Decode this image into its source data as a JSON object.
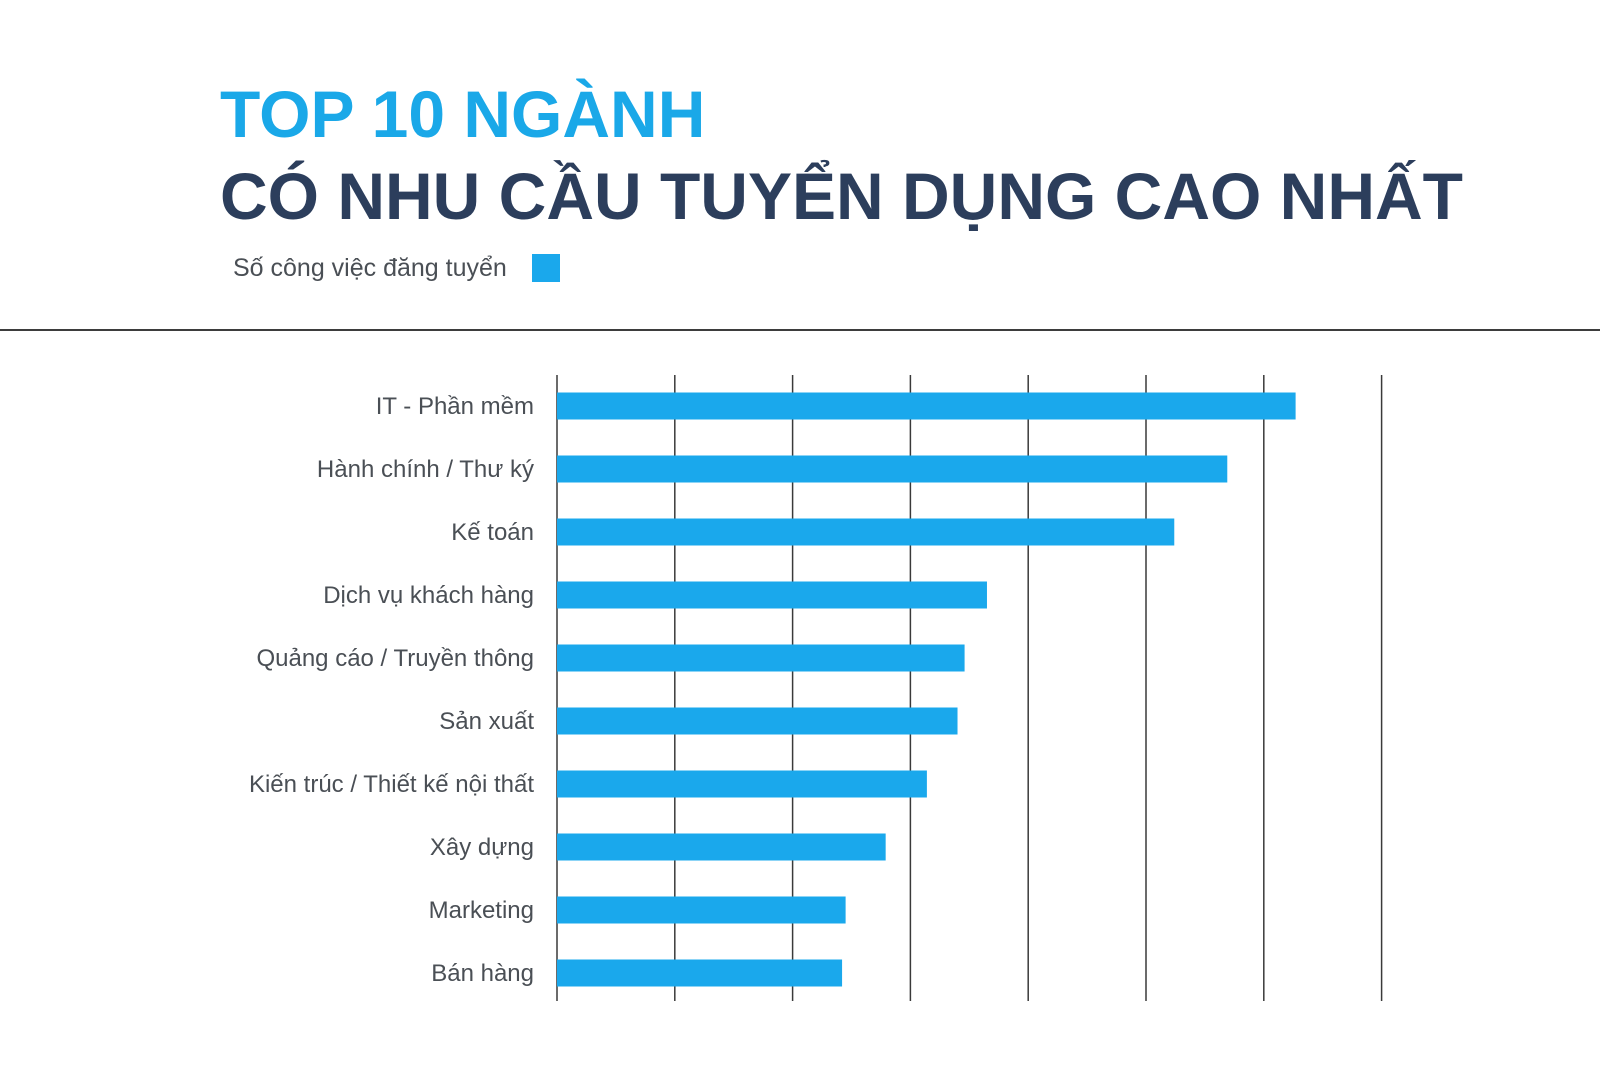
{
  "header": {
    "title_line1": "TOP 10 NGÀNH",
    "title_line2": "CÓ NHU CẦU TUYỂN DỤNG CAO NHẤT"
  },
  "legend": {
    "label": "Số công việc đăng tuyển"
  },
  "colors": {
    "title_accent": "#1aa8e8",
    "title_dark": "#2c3e5c",
    "bar": "#1aa8ec",
    "gridline": "#3a3a3a",
    "label": "#4a4f55"
  },
  "chart_data": {
    "type": "bar",
    "orientation": "horizontal",
    "categories": [
      "IT - Phần mềm",
      "Hành chính / Thư ký",
      "Kế toán",
      "Dịch vụ khách hàng",
      "Quảng cáo / Truyền thông",
      "Sản xuất",
      "Kiến trúc / Thiết kế nội thất",
      "Xây dựng",
      "Marketing",
      "Bán hàng"
    ],
    "series": [
      {
        "name": "Số công việc đăng tuyển",
        "values": [
          6.27,
          5.69,
          5.24,
          3.65,
          3.46,
          3.4,
          3.14,
          2.79,
          2.45,
          2.42
        ]
      }
    ],
    "xlim": [
      0,
      7
    ],
    "x_gridlines": [
      0,
      1,
      2,
      3,
      4,
      5,
      6,
      7
    ],
    "x_tick_labels_shown": false,
    "grid": true,
    "legend_position": "top-left"
  }
}
